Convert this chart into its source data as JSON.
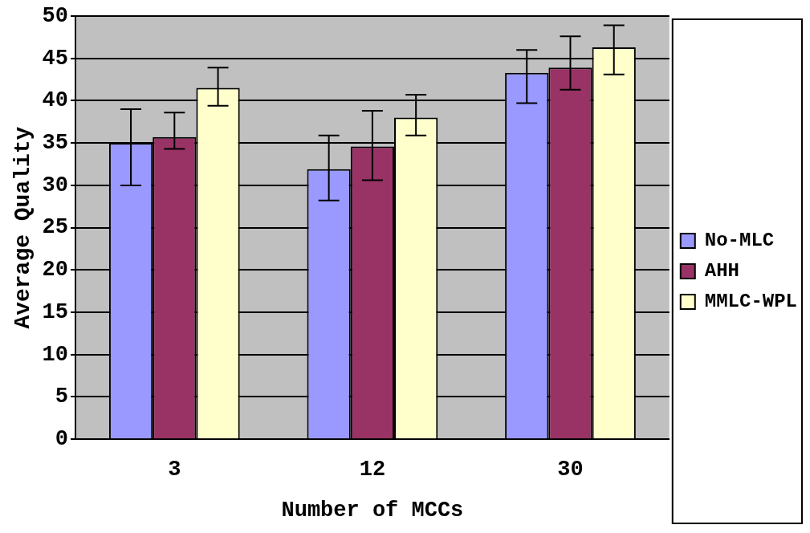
{
  "chart_data": {
    "type": "bar",
    "xlabel": "Number of MCCs",
    "ylabel": "Average Quality",
    "categories": [
      "3",
      "12",
      "30"
    ],
    "series": [
      {
        "name": "No-MLC",
        "color": "#9999ff",
        "values": [
          35.0,
          31.9,
          43.3
        ],
        "errors": [
          [
            30.0,
            39.0
          ],
          [
            28.2,
            35.9
          ],
          [
            39.7,
            46.0
          ]
        ]
      },
      {
        "name": "AHH",
        "color": "#993366",
        "values": [
          35.7,
          34.6,
          43.9
        ],
        "errors": [
          [
            34.3,
            38.6
          ],
          [
            30.6,
            38.8
          ],
          [
            41.3,
            47.6
          ]
        ]
      },
      {
        "name": "MMLC-WPL",
        "color": "#ffffcc",
        "values": [
          41.5,
          38.0,
          46.3
        ],
        "errors": [
          [
            39.4,
            43.9
          ],
          [
            35.9,
            40.7
          ],
          [
            43.1,
            48.9
          ]
        ]
      }
    ],
    "ylim": [
      0,
      50
    ],
    "yticks": [
      0,
      5,
      10,
      15,
      20,
      25,
      30,
      35,
      40,
      45,
      50
    ],
    "grid": "y",
    "legend": "right"
  }
}
